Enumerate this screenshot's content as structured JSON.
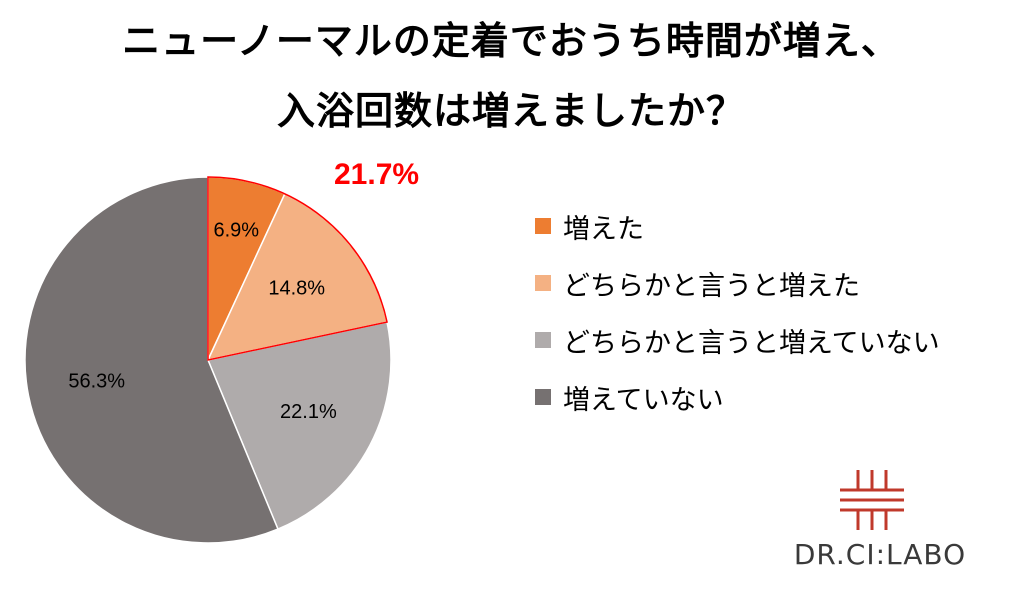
{
  "title": {
    "line1": "ニューノーマルの定着でおうち時間が増え、",
    "line2": "入浴回数は増えましたか？"
  },
  "highlight_label": "21.7%",
  "colors": {
    "slice_1": "#ed7d31",
    "slice_2": "#f4b183",
    "slice_3": "#afabab",
    "slice_4": "#767171",
    "highlight_border": "#ff0000"
  },
  "chart_data": {
    "type": "pie",
    "categories": [
      "増えた",
      "どちらかと言うと増えた",
      "どちらかと言うと増えていない",
      "増えていない"
    ],
    "values": [
      6.9,
      14.8,
      22.1,
      56.3
    ],
    "labels": [
      "6.9%",
      "14.8%",
      "22.1%",
      "56.3%"
    ],
    "legend_position": "right",
    "annotation": "21.7%"
  },
  "legend": [
    {
      "label": "増えた"
    },
    {
      "label": "どちらかと言うと増えた"
    },
    {
      "label": "どちらかと言うと増えていない"
    },
    {
      "label": "増えていない"
    }
  ],
  "logo": {
    "text": "DR.CI:LABO"
  }
}
